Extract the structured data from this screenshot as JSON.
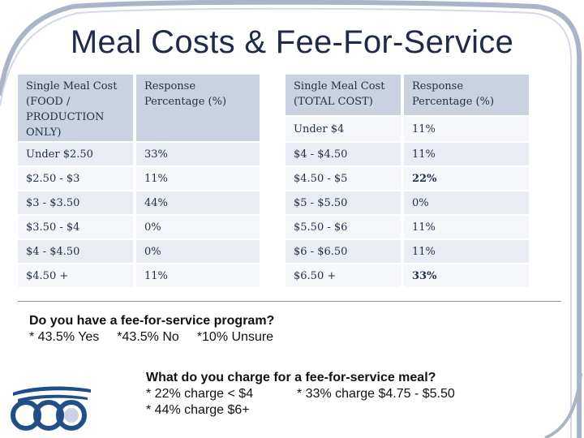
{
  "title": "Meal Costs & Fee-For-Service",
  "colors": {
    "title": "#222a4a",
    "header_row": "#cad2e1",
    "row_odd": "#e9ecf3",
    "row_even": "#f6f7fa",
    "frame": "#a9b4c9",
    "logo": "#1f4f86"
  },
  "left_table": {
    "headers": [
      "Single Meal Cost (FOOD / PRODUCTION ONLY)",
      "Response Percentage (%)"
    ],
    "rows": [
      {
        "cost": "Under $2.50",
        "pct": "33%"
      },
      {
        "cost": "$2.50 - $3",
        "pct": "11%"
      },
      {
        "cost": "$3 - $3.50",
        "pct": "44%"
      },
      {
        "cost": "$3.50 - $4",
        "pct": "0%"
      },
      {
        "cost": "$4 - $4.50",
        "pct": "0%"
      },
      {
        "cost": "$4.50 +",
        "pct": "11%"
      }
    ]
  },
  "right_table": {
    "headers": [
      "Single Meal Cost (TOTAL COST)",
      "Response Percentage (%)"
    ],
    "rows": [
      {
        "cost": "Under $4",
        "pct": "11%"
      },
      {
        "cost": "$4 - $4.50",
        "pct": "11%"
      },
      {
        "cost": "$4.50 - $5",
        "pct": "22%"
      },
      {
        "cost": "$5 - $5.50",
        "pct": "0%"
      },
      {
        "cost": "$5.50 - $6",
        "pct": "11%"
      },
      {
        "cost": "$6 - $6.50",
        "pct": "11%"
      },
      {
        "cost": "$6.50 +",
        "pct": "33%"
      }
    ]
  },
  "fee_program": {
    "question": "Do you have a fee-for-service program?",
    "answers": [
      "* 43.5% Yes",
      "*43.5% No",
      "*10% Unsure"
    ]
  },
  "fee_charge": {
    "question": "What do you charge for a fee-for-service meal?",
    "answers": [
      "* 22% charge < $4",
      "* 33% charge $4.75 - $5.50",
      "* 44% charge $6+"
    ]
  }
}
